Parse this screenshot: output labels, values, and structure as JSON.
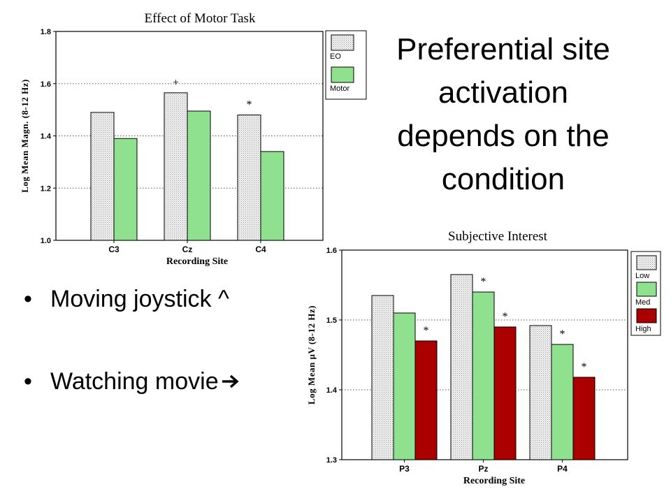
{
  "slide": {
    "title_lines": [
      "Preferential site",
      "activation",
      "depends on the",
      "condition"
    ],
    "bullets": [
      {
        "text": "Moving joystick ^",
        "suffix_icon": ""
      },
      {
        "text": "Watching movie",
        "suffix_icon": "right-arrow-icon"
      }
    ]
  },
  "chart_data": [
    {
      "type": "bar",
      "title": "Effect of Motor Task",
      "xlabel": "Recording Site",
      "ylabel": "Log Mean Magn. (8-12 Hz)",
      "categories": [
        "C3",
        "Cz",
        "C4"
      ],
      "ylim": [
        1.0,
        1.8
      ],
      "yticks": [
        "1.0",
        "1.2",
        "1.4",
        "1.6",
        "1.8"
      ],
      "grid": true,
      "legend_position": "right",
      "series": [
        {
          "name": "EO",
          "values": [
            1.49,
            1.565,
            1.48
          ],
          "color": "#e6e6e6"
        },
        {
          "name": "Motor",
          "values": [
            1.39,
            1.495,
            1.34
          ],
          "color": "#8fe08f"
        }
      ],
      "annotations": [
        {
          "category": "Cz",
          "series": "EO",
          "text": "+"
        },
        {
          "category": "C4",
          "series": "EO",
          "text": "*"
        }
      ]
    },
    {
      "type": "bar",
      "title": "Subjective Interest",
      "xlabel": "Recording Site",
      "ylabel": "Log Mean µV (8-12 Hz)",
      "categories": [
        "P3",
        "Pz",
        "P4"
      ],
      "ylim": [
        1.3,
        1.6
      ],
      "yticks": [
        "1.3",
        "1.4",
        "1.5",
        "1.6"
      ],
      "grid": true,
      "legend_position": "right",
      "series": [
        {
          "name": "Low",
          "values": [
            1.535,
            1.565,
            1.492
          ],
          "color": "#e6e6e6"
        },
        {
          "name": "Med",
          "values": [
            1.51,
            1.54,
            1.465
          ],
          "color": "#8fe08f"
        },
        {
          "name": "High",
          "values": [
            1.47,
            1.49,
            1.418
          ],
          "color": "#aa0000"
        }
      ],
      "annotations": [
        {
          "category": "P3",
          "series": "High",
          "text": "*"
        },
        {
          "category": "Pz",
          "series": "Med",
          "text": "*"
        },
        {
          "category": "Pz",
          "series": "High",
          "text": "*"
        },
        {
          "category": "P4",
          "series": "Med",
          "text": "*"
        },
        {
          "category": "P4",
          "series": "High",
          "text": "*"
        }
      ]
    }
  ]
}
